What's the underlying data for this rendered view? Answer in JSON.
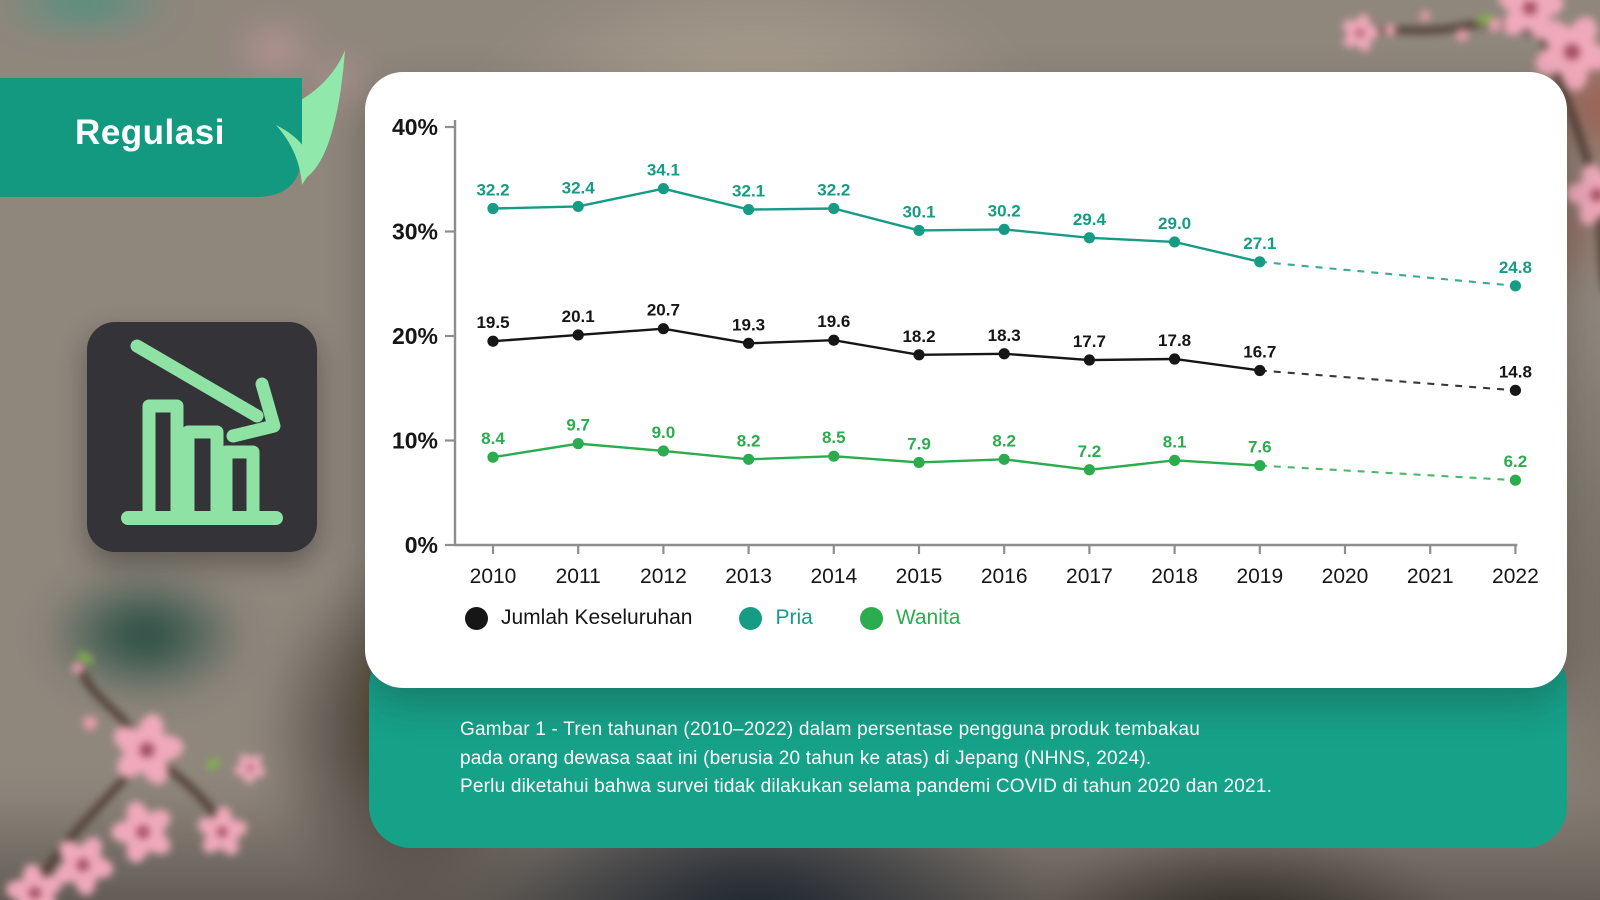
{
  "banner": {
    "title": "Regulasi"
  },
  "theme": {
    "ribbon": "#12997F",
    "band": "#16A189",
    "fold": "#90E8AA",
    "icon_bg": "#333338",
    "icon_accent": "#8EE2A4",
    "card_bg": "#FFFFFF"
  },
  "chart_data": {
    "type": "line",
    "x": [
      2010,
      2011,
      2012,
      2013,
      2014,
      2015,
      2016,
      2017,
      2018,
      2019,
      2020,
      2021,
      2022
    ],
    "ylim": [
      0,
      40
    ],
    "yticks": [
      {
        "value": 0,
        "label": "0%"
      },
      {
        "value": 10,
        "label": "10%"
      },
      {
        "value": 20,
        "label": "20%"
      },
      {
        "value": 30,
        "label": "30%"
      },
      {
        "value": 40,
        "label": "40%"
      }
    ],
    "grid": false,
    "legend_position": "bottom-left",
    "survey_gap_years": [
      2020,
      2021
    ],
    "dashed_projection": {
      "from": 2019,
      "to": 2022
    },
    "series": [
      {
        "name": "Pria",
        "color": "#169C84",
        "values": [
          32.2,
          32.4,
          34.1,
          32.1,
          32.2,
          30.1,
          30.2,
          29.4,
          29.0,
          27.1,
          null,
          null,
          24.8
        ],
        "labels": [
          "32.2",
          "32.4",
          "34.1",
          "32.1",
          "32.2",
          "30.1",
          "30.2",
          "29.4",
          "29.0",
          "27.1",
          "",
          "",
          "24.8"
        ]
      },
      {
        "name": "Jumlah Keseluruhan",
        "color": "#161616",
        "values": [
          19.5,
          20.1,
          20.7,
          19.3,
          19.6,
          18.2,
          18.3,
          17.7,
          17.8,
          16.7,
          null,
          null,
          14.8
        ],
        "labels": [
          "19.5",
          "20.1",
          "20.7",
          "19.3",
          "19.6",
          "18.2",
          "18.3",
          "17.7",
          "17.8",
          "16.7",
          "",
          "",
          "14.8"
        ]
      },
      {
        "name": "Wanita",
        "color": "#2BAC4E",
        "values": [
          8.4,
          9.7,
          9.0,
          8.2,
          8.5,
          7.9,
          8.2,
          7.2,
          8.1,
          7.6,
          null,
          null,
          6.2
        ],
        "labels": [
          "8.4",
          "9.7",
          "9.0",
          "8.2",
          "8.5",
          "7.9",
          "8.2",
          "7.2",
          "8.1",
          "7.6",
          "",
          "",
          "6.2"
        ]
      }
    ]
  },
  "legend": {
    "items": [
      {
        "label": "Jumlah Keseluruhan",
        "color": "#161616"
      },
      {
        "label": "Pria",
        "color": "#169C84"
      },
      {
        "label": "Wanita",
        "color": "#2BAC4E"
      }
    ]
  },
  "caption": {
    "lines": [
      "Gambar 1 - Tren tahunan (2010–2022) dalam persentase pengguna produk tembakau",
      "pada orang dewasa saat ini (berusia 20 tahun ke atas) di Jepang (NHNS, 2024).",
      "Perlu diketahui bahwa survei tidak dilakukan selama pandemi COVID di tahun 2020 dan 2021."
    ]
  }
}
